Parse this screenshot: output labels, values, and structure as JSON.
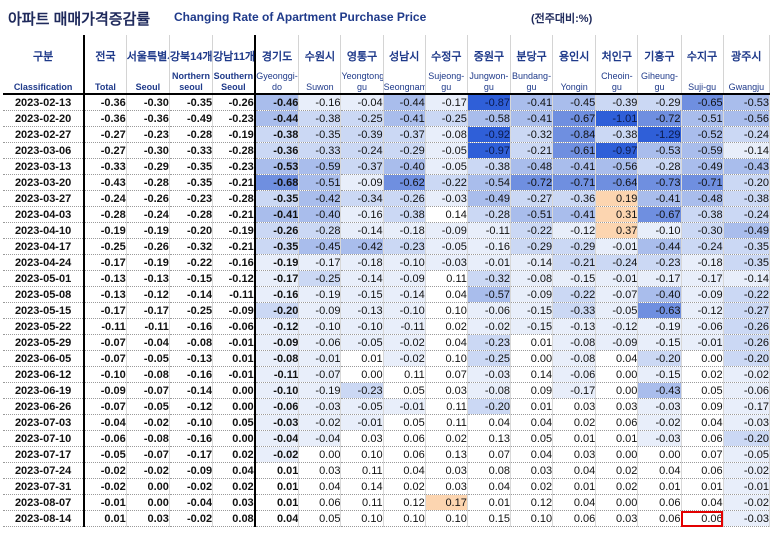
{
  "title": {
    "korean": "아파트 매매가격증감률",
    "english": "Changing Rate of Apartment Purchase Price",
    "unit": "(전주대비:%)"
  },
  "header": {
    "korean": [
      "구분",
      "전국",
      "서울특별시",
      "강북14개구",
      "강남11개구",
      "경기도",
      "수원시",
      "영통구",
      "성남시",
      "수정구",
      "중원구",
      "분당구",
      "용인시",
      "처인구",
      "기흥구",
      "수지구",
      "광주시"
    ],
    "english": [
      "Classification",
      "Total",
      "Seoul",
      "Northern seoul",
      "Southern Seoul",
      "Gyeonggi-do",
      "Suwon",
      "Yeongtong-gu",
      "Seongnam",
      "Sujeong-gu",
      "Jungwon-gu",
      "Bundang-gu",
      "Yongin",
      "Cheoin-gu",
      "Giheung-gu",
      "Suji-gu",
      "Gwangju"
    ]
  },
  "rows": [
    {
      "date": "2023-02-13",
      "v": [
        "-0.36",
        "-0.30",
        "-0.35",
        "-0.26",
        "-0.46",
        "-0.16",
        "-0.04",
        "-0.44",
        "-0.17",
        "-0.87",
        "-0.41",
        "-0.45",
        "-0.39",
        "-0.29",
        "-0.65",
        "-0.53"
      ]
    },
    {
      "date": "2023-02-20",
      "v": [
        "-0.36",
        "-0.36",
        "-0.49",
        "-0.23",
        "-0.44",
        "-0.38",
        "-0.25",
        "-0.41",
        "-0.25",
        "-0.58",
        "-0.41",
        "-0.67",
        "-1.01",
        "-0.72",
        "-0.51",
        "-0.56"
      ]
    },
    {
      "date": "2023-02-27",
      "v": [
        "-0.27",
        "-0.23",
        "-0.28",
        "-0.19",
        "-0.38",
        "-0.35",
        "-0.39",
        "-0.37",
        "-0.08",
        "-0.92",
        "-0.32",
        "-0.84",
        "-0.38",
        "-1.29",
        "-0.52",
        "-0.24"
      ]
    },
    {
      "date": "2023-03-06",
      "v": [
        "-0.27",
        "-0.30",
        "-0.33",
        "-0.28",
        "-0.36",
        "-0.33",
        "-0.24",
        "-0.29",
        "-0.05",
        "-0.97",
        "-0.21",
        "-0.61",
        "-0.97",
        "-0.53",
        "-0.59",
        "-0.14"
      ]
    },
    {
      "date": "2023-03-13",
      "v": [
        "-0.33",
        "-0.29",
        "-0.35",
        "-0.23",
        "-0.53",
        "-0.59",
        "-0.37",
        "-0.40",
        "-0.05",
        "-0.38",
        "-0.48",
        "-0.41",
        "-0.56",
        "-0.28",
        "-0.49",
        "-0.43"
      ]
    },
    {
      "date": "2023-03-20",
      "v": [
        "-0.43",
        "-0.28",
        "-0.35",
        "-0.21",
        "-0.68",
        "-0.51",
        "-0.09",
        "-0.62",
        "-0.22",
        "-0.54",
        "-0.72",
        "-0.71",
        "-0.64",
        "-0.73",
        "-0.71",
        "-0.20"
      ]
    },
    {
      "date": "2023-03-27",
      "v": [
        "-0.24",
        "-0.26",
        "-0.23",
        "-0.28",
        "-0.35",
        "-0.42",
        "-0.34",
        "-0.26",
        "-0.03",
        "-0.49",
        "-0.27",
        "-0.36",
        "0.19",
        "-0.41",
        "-0.48",
        "-0.38"
      ]
    },
    {
      "date": "2023-04-03",
      "v": [
        "-0.28",
        "-0.24",
        "-0.28",
        "-0.21",
        "-0.41",
        "-0.40",
        "-0.16",
        "-0.38",
        "0.14",
        "-0.28",
        "-0.51",
        "-0.41",
        "0.31",
        "-0.67",
        "-0.38",
        "-0.24"
      ]
    },
    {
      "date": "2023-04-10",
      "v": [
        "-0.19",
        "-0.19",
        "-0.20",
        "-0.19",
        "-0.26",
        "-0.28",
        "-0.14",
        "-0.18",
        "-0.09",
        "-0.11",
        "-0.22",
        "-0.12",
        "0.37",
        "-0.10",
        "-0.30",
        "-0.49"
      ]
    },
    {
      "date": "2023-04-17",
      "v": [
        "-0.25",
        "-0.26",
        "-0.32",
        "-0.21",
        "-0.35",
        "-0.45",
        "-0.42",
        "-0.23",
        "-0.05",
        "-0.16",
        "-0.29",
        "-0.29",
        "-0.01",
        "-0.44",
        "-0.24",
        "-0.35"
      ]
    },
    {
      "date": "2023-04-24",
      "v": [
        "-0.17",
        "-0.19",
        "-0.22",
        "-0.16",
        "-0.19",
        "-0.17",
        "-0.18",
        "-0.10",
        "-0.03",
        "-0.01",
        "-0.14",
        "-0.21",
        "-0.24",
        "-0.23",
        "-0.18",
        "-0.35"
      ]
    },
    {
      "date": "2023-05-01",
      "v": [
        "-0.13",
        "-0.13",
        "-0.15",
        "-0.12",
        "-0.17",
        "-0.25",
        "-0.14",
        "-0.09",
        "0.11",
        "-0.32",
        "-0.08",
        "-0.15",
        "-0.01",
        "-0.17",
        "-0.17",
        "-0.14"
      ]
    },
    {
      "date": "2023-05-08",
      "v": [
        "-0.13",
        "-0.12",
        "-0.14",
        "-0.11",
        "-0.16",
        "-0.19",
        "-0.15",
        "-0.14",
        "0.04",
        "-0.57",
        "-0.09",
        "-0.22",
        "-0.07",
        "-0.40",
        "-0.09",
        "-0.22"
      ]
    },
    {
      "date": "2023-05-15",
      "v": [
        "-0.17",
        "-0.17",
        "-0.25",
        "-0.09",
        "-0.20",
        "-0.09",
        "-0.13",
        "-0.10",
        "0.10",
        "-0.06",
        "-0.15",
        "-0.33",
        "-0.05",
        "-0.63",
        "-0.12",
        "-0.27"
      ]
    },
    {
      "date": "2023-05-22",
      "v": [
        "-0.11",
        "-0.11",
        "-0.16",
        "-0.06",
        "-0.12",
        "-0.10",
        "-0.10",
        "-0.11",
        "0.02",
        "-0.02",
        "-0.15",
        "-0.13",
        "-0.12",
        "-0.19",
        "-0.06",
        "-0.26"
      ]
    },
    {
      "date": "2023-05-29",
      "v": [
        "-0.07",
        "-0.04",
        "-0.08",
        "-0.01",
        "-0.09",
        "-0.06",
        "-0.05",
        "-0.02",
        "0.04",
        "-0.23",
        "0.01",
        "-0.08",
        "-0.09",
        "-0.15",
        "-0.01",
        "-0.26"
      ]
    },
    {
      "date": "2023-06-05",
      "v": [
        "-0.07",
        "-0.05",
        "-0.13",
        "0.01",
        "-0.08",
        "-0.01",
        "0.01",
        "-0.02",
        "0.10",
        "-0.25",
        "0.00",
        "-0.08",
        "0.04",
        "-0.20",
        "0.00",
        "-0.20"
      ]
    },
    {
      "date": "2023-06-12",
      "v": [
        "-0.10",
        "-0.08",
        "-0.16",
        "-0.01",
        "-0.11",
        "-0.07",
        "0.00",
        "0.11",
        "0.07",
        "-0.03",
        "0.14",
        "-0.06",
        "0.00",
        "-0.15",
        "0.02",
        "-0.02"
      ]
    },
    {
      "date": "2023-06-19",
      "v": [
        "-0.09",
        "-0.07",
        "-0.14",
        "0.00",
        "-0.10",
        "-0.19",
        "-0.23",
        "0.05",
        "0.03",
        "-0.08",
        "0.09",
        "-0.17",
        "0.00",
        "-0.43",
        "0.05",
        "-0.06"
      ]
    },
    {
      "date": "2023-06-26",
      "v": [
        "-0.07",
        "-0.05",
        "-0.12",
        "0.00",
        "-0.06",
        "-0.03",
        "-0.05",
        "-0.01",
        "0.11",
        "-0.20",
        "0.01",
        "0.03",
        "0.03",
        "-0.03",
        "0.09",
        "-0.17"
      ]
    },
    {
      "date": "2023-07-03",
      "v": [
        "-0.04",
        "-0.02",
        "-0.10",
        "0.05",
        "-0.03",
        "-0.02",
        "-0.01",
        "0.05",
        "0.11",
        "0.04",
        "0.04",
        "0.02",
        "0.06",
        "-0.02",
        "0.04",
        "-0.03"
      ]
    },
    {
      "date": "2023-07-10",
      "v": [
        "-0.06",
        "-0.08",
        "-0.16",
        "0.00",
        "-0.04",
        "-0.04",
        "0.03",
        "0.06",
        "0.02",
        "0.13",
        "0.05",
        "0.01",
        "0.01",
        "-0.03",
        "0.06",
        "-0.20"
      ]
    },
    {
      "date": "2023-07-17",
      "v": [
        "-0.05",
        "-0.07",
        "-0.17",
        "0.02",
        "-0.02",
        "0.00",
        "0.10",
        "0.06",
        "0.13",
        "0.07",
        "0.04",
        "0.03",
        "0.00",
        "0.00",
        "0.07",
        "-0.05"
      ]
    },
    {
      "date": "2023-07-24",
      "v": [
        "-0.02",
        "-0.02",
        "-0.09",
        "0.04",
        "0.01",
        "0.03",
        "0.11",
        "0.04",
        "0.03",
        "0.08",
        "0.03",
        "0.04",
        "0.02",
        "0.04",
        "0.06",
        "-0.02"
      ]
    },
    {
      "date": "2023-07-31",
      "v": [
        "-0.02",
        "0.00",
        "-0.02",
        "0.02",
        "0.01",
        "0.04",
        "0.14",
        "0.02",
        "0.03",
        "0.04",
        "0.02",
        "0.01",
        "0.02",
        "0.01",
        "0.01",
        "-0.01"
      ]
    },
    {
      "date": "2023-08-07",
      "v": [
        "-0.01",
        "0.00",
        "-0.04",
        "0.03",
        "0.01",
        "0.06",
        "0.11",
        "0.12",
        "0.17",
        "0.01",
        "0.12",
        "0.04",
        "0.00",
        "0.06",
        "0.04",
        "-0.02"
      ]
    },
    {
      "date": "2023-08-14",
      "v": [
        "0.01",
        "0.03",
        "-0.02",
        "0.08",
        "0.04",
        "0.05",
        "0.10",
        "0.10",
        "0.10",
        "0.15",
        "0.10",
        "0.06",
        "0.03",
        "0.06",
        "0.06",
        "-0.03"
      ]
    }
  ],
  "highlighted_cell": {
    "date": "2023-08-14",
    "column": "Suji-gu",
    "value": "0.06"
  },
  "colors": {
    "header_text": "#1f3a8a",
    "negative_strong": "#2f5fd8",
    "negative_light": "#dde6f7",
    "positive": "#fcd5b0",
    "highlight_border": "#e30000"
  }
}
